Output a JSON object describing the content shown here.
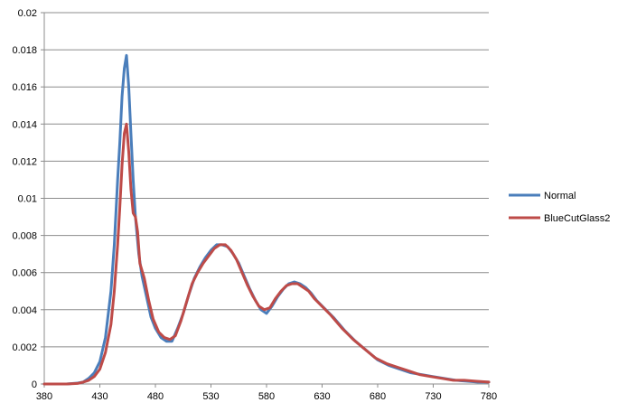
{
  "chart_data": {
    "type": "line",
    "title": "",
    "xlabel": "",
    "ylabel": "",
    "xlim": [
      380,
      780
    ],
    "ylim": [
      0,
      0.02
    ],
    "x_ticks": [
      "380",
      "430",
      "480",
      "530",
      "580",
      "630",
      "680",
      "730",
      "780"
    ],
    "y_ticks": [
      "0",
      "0.002",
      "0.004",
      "0.006",
      "0.008",
      "0.01",
      "0.012",
      "0.014",
      "0.016",
      "0.018",
      "0.02"
    ],
    "grid": "horizontal",
    "legend_position": "right",
    "series": [
      {
        "name": "Normal",
        "color": "#4A7EBB",
        "points": [
          [
            380,
            0
          ],
          [
            400,
            0
          ],
          [
            410,
            5e-05
          ],
          [
            415,
            0.0001
          ],
          [
            420,
            0.0003
          ],
          [
            425,
            0.0006
          ],
          [
            430,
            0.0012
          ],
          [
            435,
            0.0025
          ],
          [
            440,
            0.005
          ],
          [
            443,
            0.0075
          ],
          [
            446,
            0.011
          ],
          [
            448,
            0.013
          ],
          [
            450,
            0.0155
          ],
          [
            452,
            0.017
          ],
          [
            454,
            0.0177
          ],
          [
            456,
            0.016
          ],
          [
            458,
            0.0135
          ],
          [
            460,
            0.011
          ],
          [
            462,
            0.009
          ],
          [
            465,
            0.007
          ],
          [
            468,
            0.0058
          ],
          [
            472,
            0.0047
          ],
          [
            476,
            0.0036
          ],
          [
            480,
            0.003
          ],
          [
            485,
            0.0025
          ],
          [
            490,
            0.0023
          ],
          [
            495,
            0.0023
          ],
          [
            500,
            0.003
          ],
          [
            505,
            0.0038
          ],
          [
            510,
            0.0048
          ],
          [
            515,
            0.0057
          ],
          [
            520,
            0.0063
          ],
          [
            525,
            0.0068
          ],
          [
            530,
            0.0072
          ],
          [
            535,
            0.0075
          ],
          [
            540,
            0.0075
          ],
          [
            545,
            0.0074
          ],
          [
            550,
            0.007
          ],
          [
            555,
            0.0065
          ],
          [
            560,
            0.0058
          ],
          [
            565,
            0.0051
          ],
          [
            570,
            0.0045
          ],
          [
            575,
            0.004
          ],
          [
            580,
            0.0038
          ],
          [
            585,
            0.0042
          ],
          [
            590,
            0.0047
          ],
          [
            595,
            0.0051
          ],
          [
            600,
            0.0054
          ],
          [
            605,
            0.0055
          ],
          [
            610,
            0.0054
          ],
          [
            615,
            0.0052
          ],
          [
            620,
            0.0049
          ],
          [
            625,
            0.0045
          ],
          [
            630,
            0.0042
          ],
          [
            640,
            0.0036
          ],
          [
            650,
            0.0029
          ],
          [
            660,
            0.0023
          ],
          [
            670,
            0.0018
          ],
          [
            680,
            0.0013
          ],
          [
            690,
            0.001
          ],
          [
            700,
            0.0008
          ],
          [
            710,
            0.0006
          ],
          [
            720,
            0.0005
          ],
          [
            730,
            0.0004
          ],
          [
            740,
            0.0003
          ],
          [
            750,
            0.0002
          ],
          [
            760,
            0.00015
          ],
          [
            770,
            0.0001
          ],
          [
            780,
            0.0001
          ]
        ]
      },
      {
        "name": "BlueCutGlass2",
        "color": "#BE4B48",
        "points": [
          [
            380,
            0
          ],
          [
            400,
            0
          ],
          [
            410,
            3e-05
          ],
          [
            415,
            0.0001
          ],
          [
            420,
            0.0002
          ],
          [
            425,
            0.0004
          ],
          [
            430,
            0.0008
          ],
          [
            435,
            0.0017
          ],
          [
            440,
            0.0032
          ],
          [
            443,
            0.005
          ],
          [
            446,
            0.0075
          ],
          [
            448,
            0.0095
          ],
          [
            450,
            0.0118
          ],
          [
            452,
            0.0135
          ],
          [
            454,
            0.014
          ],
          [
            456,
            0.0125
          ],
          [
            458,
            0.0105
          ],
          [
            460,
            0.0092
          ],
          [
            462,
            0.009
          ],
          [
            464,
            0.0082
          ],
          [
            466,
            0.0065
          ],
          [
            470,
            0.0057
          ],
          [
            474,
            0.0045
          ],
          [
            478,
            0.0035
          ],
          [
            483,
            0.0028
          ],
          [
            488,
            0.0025
          ],
          [
            493,
            0.0024
          ],
          [
            498,
            0.0026
          ],
          [
            503,
            0.0034
          ],
          [
            508,
            0.0044
          ],
          [
            513,
            0.0054
          ],
          [
            518,
            0.006
          ],
          [
            523,
            0.0065
          ],
          [
            528,
            0.0069
          ],
          [
            533,
            0.0073
          ],
          [
            538,
            0.0075
          ],
          [
            543,
            0.0075
          ],
          [
            548,
            0.0072
          ],
          [
            553,
            0.0067
          ],
          [
            558,
            0.006
          ],
          [
            563,
            0.0053
          ],
          [
            568,
            0.0047
          ],
          [
            573,
            0.0042
          ],
          [
            578,
            0.004
          ],
          [
            583,
            0.0041
          ],
          [
            588,
            0.0046
          ],
          [
            593,
            0.005
          ],
          [
            598,
            0.0053
          ],
          [
            603,
            0.0054
          ],
          [
            608,
            0.0054
          ],
          [
            613,
            0.0052
          ],
          [
            618,
            0.005
          ],
          [
            623,
            0.0046
          ],
          [
            628,
            0.0043
          ],
          [
            638,
            0.0037
          ],
          [
            648,
            0.003
          ],
          [
            658,
            0.0024
          ],
          [
            668,
            0.0019
          ],
          [
            678,
            0.0014
          ],
          [
            688,
            0.0011
          ],
          [
            698,
            0.0009
          ],
          [
            708,
            0.0007
          ],
          [
            718,
            0.0005
          ],
          [
            728,
            0.0004
          ],
          [
            738,
            0.0003
          ],
          [
            748,
            0.0002
          ],
          [
            758,
            0.0002
          ],
          [
            768,
            0.00015
          ],
          [
            780,
            0.0001
          ]
        ]
      }
    ]
  }
}
